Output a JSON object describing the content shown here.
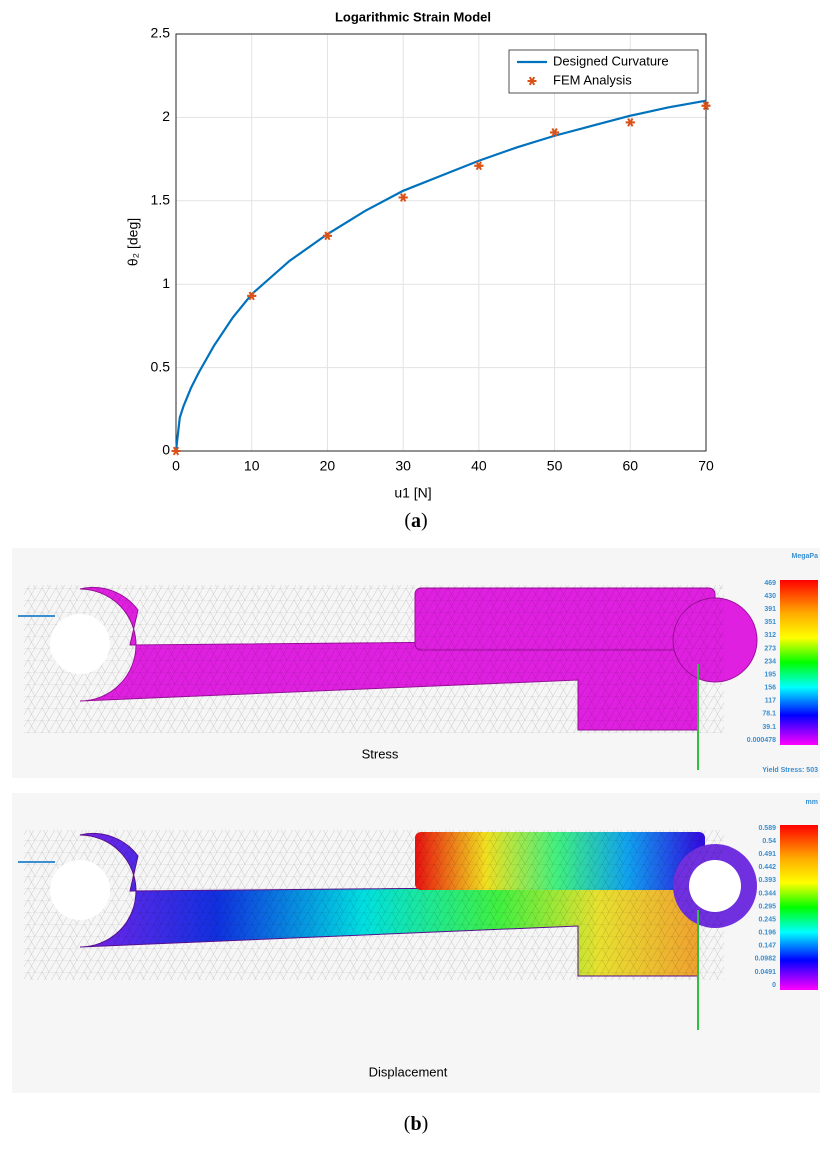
{
  "chart_data": {
    "type": "line",
    "title": "Logarithmic Strain Model",
    "xlabel": "u1 [N]",
    "ylabel": "θ₂ [deg]",
    "series": [
      {
        "name": "Designed Curvature",
        "color": "#0072bd",
        "style": "line",
        "x": [
          0,
          0.5,
          1,
          2,
          3,
          5,
          7.5,
          10,
          15,
          20,
          25,
          30,
          35,
          40,
          45,
          50,
          55,
          60,
          65,
          70
        ],
        "values": [
          0,
          0.2,
          0.27,
          0.38,
          0.47,
          0.63,
          0.8,
          0.94,
          1.14,
          1.3,
          1.44,
          1.56,
          1.65,
          1.74,
          1.82,
          1.89,
          1.95,
          2.01,
          2.06,
          2.1
        ]
      },
      {
        "name": "FEM Analysis",
        "color": "#d95319",
        "style": "marker",
        "x": [
          0,
          10,
          20,
          30,
          40,
          50,
          60,
          70
        ],
        "values": [
          0,
          0.93,
          1.29,
          1.52,
          1.71,
          1.91,
          1.97,
          2.07
        ]
      }
    ],
    "xlim": [
      0,
      70
    ],
    "xticks": [
      0,
      10,
      20,
      30,
      40,
      50,
      60,
      70
    ],
    "ylim": [
      0,
      2.5
    ],
    "yticks": [
      0,
      0.5,
      1,
      1.5,
      2,
      2.5
    ],
    "grid": true,
    "legend": "upper right"
  },
  "captions": [
    "a",
    "b"
  ],
  "panels": [
    {
      "label": "Stress",
      "unit": "MegaPa",
      "footer": "Yield Stress: 503",
      "scale": [
        "469",
        "430",
        "391",
        "351",
        "312",
        "273",
        "234",
        "195",
        "156",
        "117",
        "78.1",
        "39.1",
        "0.000478"
      ]
    },
    {
      "label": "Displacement",
      "unit": "mm",
      "scale": [
        "0.589",
        "0.54",
        "0.491",
        "0.442",
        "0.393",
        "0.344",
        "0.295",
        "0.245",
        "0.196",
        "0.147",
        "0.0982",
        "0.0491",
        "0"
      ]
    }
  ]
}
